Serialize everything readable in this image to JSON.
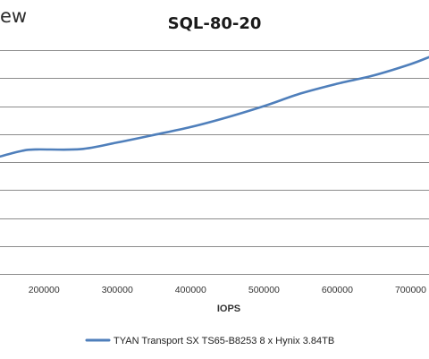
{
  "header": {
    "logo_fragment": "ew"
  },
  "chart_data": {
    "type": "line",
    "title": "SQL-80-20",
    "xlabel": "IOPS",
    "ylabel": "",
    "x_ticks": [
      200000,
      300000,
      400000,
      500000,
      600000,
      700000
    ],
    "x_tick_labels": [
      "200000",
      "300000",
      "400000",
      "500000",
      "600000",
      "700000"
    ],
    "xlim": [
      140000,
      725000
    ],
    "ylim": [
      0,
      8
    ],
    "grid": true,
    "legend_position": "bottom",
    "series": [
      {
        "name": "TYAN Transport SX TS65-B8253 8 x Hynix 3.84TB",
        "color": "#4f7fbb",
        "points": [
          [
            140000,
            4.2
          ],
          [
            170000,
            4.4
          ],
          [
            190000,
            4.45
          ],
          [
            250000,
            4.46
          ],
          [
            300000,
            4.7
          ],
          [
            350000,
            4.97
          ],
          [
            400000,
            5.25
          ],
          [
            450000,
            5.6
          ],
          [
            500000,
            6.0
          ],
          [
            550000,
            6.45
          ],
          [
            600000,
            6.8
          ],
          [
            650000,
            7.1
          ],
          [
            700000,
            7.5
          ],
          [
            725000,
            7.75
          ]
        ]
      }
    ]
  }
}
